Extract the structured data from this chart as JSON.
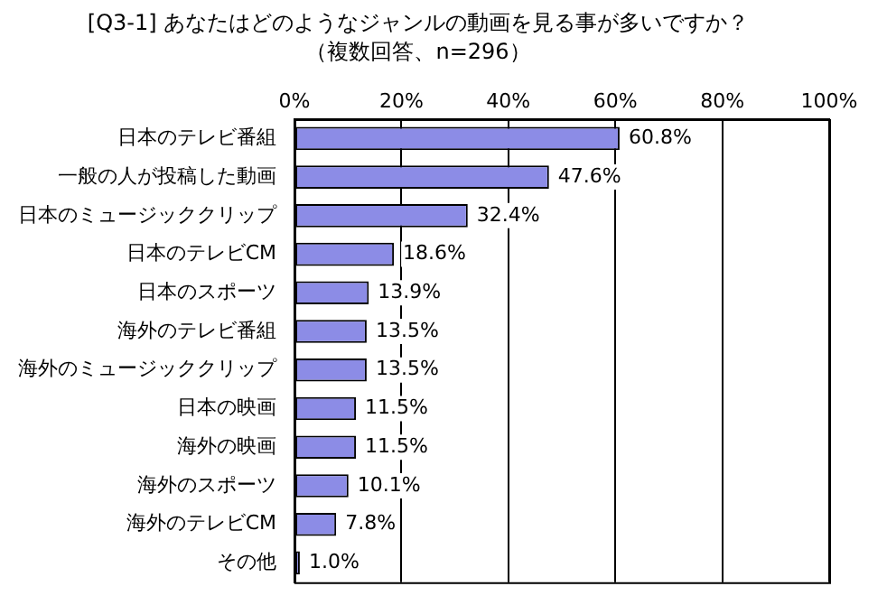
{
  "chart_data": {
    "type": "bar",
    "orientation": "horizontal",
    "title": "[Q3-1] あなたはどのようなジャンルの動画を見る事が多いですか？",
    "subtitle": "（複数回答、n=296）",
    "categories": [
      "日本のテレビ番組",
      "一般の人が投稿した動画",
      "日本のミュージッククリップ",
      "日本のテレビCM",
      "日本のスポーツ",
      "海外のテレビ番組",
      "海外のミュージッククリップ",
      "日本の映画",
      "海外の映画",
      "海外のスポーツ",
      "海外のテレビCM",
      "その他"
    ],
    "values": [
      60.8,
      47.6,
      32.4,
      18.6,
      13.9,
      13.5,
      13.5,
      11.5,
      11.5,
      10.1,
      7.8,
      1.0
    ],
    "value_labels": [
      "60.8%",
      "47.6%",
      "32.4%",
      "18.6%",
      "13.9%",
      "13.5%",
      "13.5%",
      "11.5%",
      "11.5%",
      "10.1%",
      "7.8%",
      "1.0%"
    ],
    "color": "#8c8ce6",
    "xlim": [
      0,
      100
    ],
    "xticks": [
      {
        "value": 0,
        "label": "0%"
      },
      {
        "value": 20,
        "label": "20%"
      },
      {
        "value": 40,
        "label": "40%"
      },
      {
        "value": 60,
        "label": "60%"
      },
      {
        "value": 80,
        "label": "80%"
      },
      {
        "value": 100,
        "label": "100%"
      }
    ],
    "grid": "x",
    "legend": false
  }
}
